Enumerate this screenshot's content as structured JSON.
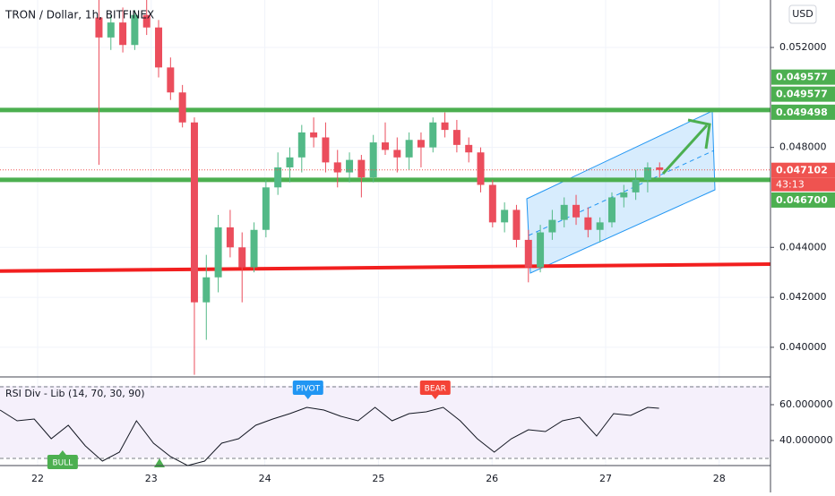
{
  "chart_data": [
    {
      "type": "candlestick",
      "title": "TRON / Dollar, 1h, BITFINEX",
      "currency": "USD",
      "up_color": "#53b987",
      "down_color": "#eb4d5c",
      "grid": true,
      "x": [
        22.54,
        22.645,
        22.75,
        22.855,
        22.96,
        23.065,
        23.17,
        23.275,
        23.38,
        23.485,
        23.59,
        23.695,
        23.8,
        23.905,
        24.01,
        24.115,
        24.22,
        24.325,
        24.43,
        24.535,
        24.64,
        24.745,
        24.85,
        24.955,
        25.06,
        25.165,
        25.27,
        25.375,
        25.48,
        25.585,
        25.69,
        25.795,
        25.9,
        26.005,
        26.11,
        26.215,
        26.32,
        26.425,
        26.53,
        26.635,
        26.74,
        26.845,
        26.95,
        27.055,
        27.16,
        27.265,
        27.37,
        27.475
      ],
      "open": [
        0.0532,
        0.0524,
        0.053,
        0.0521,
        0.0533,
        0.0528,
        0.0512,
        0.0502,
        0.049,
        0.0418,
        0.0428,
        0.0448,
        0.044,
        0.0432,
        0.0447,
        0.0464,
        0.0472,
        0.0476,
        0.0486,
        0.0484,
        0.0474,
        0.047,
        0.0475,
        0.0468,
        0.0482,
        0.0479,
        0.0476,
        0.0483,
        0.048,
        0.049,
        0.0487,
        0.0481,
        0.0478,
        0.0465,
        0.045,
        0.0455,
        0.0443,
        0.0432,
        0.0446,
        0.0451,
        0.0457,
        0.0452,
        0.0447,
        0.045,
        0.046,
        0.0462,
        0.0467,
        0.0472
      ],
      "high": [
        0.0539,
        0.0533,
        0.0536,
        0.0535,
        0.0539,
        0.0531,
        0.0516,
        0.0505,
        0.0492,
        0.0437,
        0.0453,
        0.0455,
        0.0446,
        0.045,
        0.0467,
        0.0478,
        0.048,
        0.0489,
        0.0492,
        0.049,
        0.0479,
        0.0478,
        0.0477,
        0.0485,
        0.049,
        0.0484,
        0.0486,
        0.0486,
        0.0492,
        0.0494,
        0.0491,
        0.0484,
        0.048,
        0.0467,
        0.0458,
        0.0457,
        0.0447,
        0.0449,
        0.0455,
        0.046,
        0.0461,
        0.0456,
        0.0452,
        0.0462,
        0.0465,
        0.0471,
        0.0474,
        0.0474
      ],
      "low": [
        0.0473,
        0.0519,
        0.0518,
        0.0519,
        0.0525,
        0.0508,
        0.0499,
        0.0488,
        0.0389,
        0.0403,
        0.0422,
        0.0436,
        0.0418,
        0.043,
        0.0444,
        0.0461,
        0.0466,
        0.047,
        0.048,
        0.047,
        0.0464,
        0.0466,
        0.046,
        0.0466,
        0.0477,
        0.047,
        0.0471,
        0.0472,
        0.0478,
        0.0484,
        0.0478,
        0.0474,
        0.0462,
        0.0448,
        0.0446,
        0.044,
        0.0426,
        0.043,
        0.0443,
        0.0448,
        0.0449,
        0.0444,
        0.0442,
        0.0448,
        0.0456,
        0.0459,
        0.0462,
        0.0468
      ],
      "close": [
        0.0524,
        0.053,
        0.0521,
        0.0533,
        0.0528,
        0.0512,
        0.0502,
        0.049,
        0.0418,
        0.0428,
        0.0448,
        0.044,
        0.0432,
        0.0447,
        0.0464,
        0.0472,
        0.0476,
        0.0486,
        0.0484,
        0.0474,
        0.047,
        0.0475,
        0.0468,
        0.0482,
        0.0479,
        0.0476,
        0.0483,
        0.048,
        0.049,
        0.0487,
        0.0481,
        0.0478,
        0.0465,
        0.045,
        0.0455,
        0.0443,
        0.0432,
        0.0446,
        0.0451,
        0.0457,
        0.0452,
        0.0447,
        0.045,
        0.046,
        0.0462,
        0.0467,
        0.0472,
        0.0471
      ],
      "xlim": [
        21.669,
        28.451
      ],
      "xticks": [
        22,
        23,
        24,
        25,
        26,
        27,
        28
      ],
      "ylim": [
        0.03885,
        0.0539
      ],
      "yticks": [
        {
          "value": 0.052,
          "label": "0.052000"
        },
        {
          "value": 0.048,
          "label": "0.048000"
        },
        {
          "value": 0.044,
          "label": "0.044000"
        },
        {
          "value": 0.042,
          "label": "0.042000"
        },
        {
          "value": 0.04,
          "label": "0.040000"
        }
      ],
      "levels": [
        {
          "value": 0.049498,
          "color": "#4caf50"
        },
        {
          "value": 0.0467,
          "color": "#4caf50"
        }
      ],
      "trendline": {
        "values": [
          0.04305,
          0.04333
        ],
        "color": "#f21f1f"
      },
      "price_labels": [
        {
          "value": 0.049577,
          "label": "0.049577",
          "color": "#4caf50"
        },
        {
          "value": 0.049577,
          "label": "0.049577",
          "color": "#4caf50"
        },
        {
          "value": 0.049498,
          "label": "0.049498",
          "color": "#4caf50"
        },
        {
          "value": 0.047102,
          "label": "0.047102",
          "color": "#ef5350"
        },
        {
          "value": 0.0467,
          "label": "0.046700",
          "color": "#4caf50"
        }
      ],
      "countdown": "43:13"
    },
    {
      "type": "line",
      "title": "RSI Div - Lib (14, 70, 30, 90)",
      "color": "#131722",
      "x": [
        21.67,
        21.82,
        21.97,
        22.12,
        22.27,
        22.42,
        22.57,
        22.72,
        22.87,
        23.02,
        23.17,
        23.32,
        23.47,
        23.62,
        23.77,
        23.92,
        24.07,
        24.22,
        24.37,
        24.52,
        24.67,
        24.82,
        24.97,
        25.12,
        25.27,
        25.42,
        25.57,
        25.72,
        25.87,
        26.02,
        26.17,
        26.32,
        26.47,
        26.62,
        26.77,
        26.92,
        27.07,
        27.22,
        27.37,
        27.47
      ],
      "values": [
        57,
        51,
        52,
        41,
        48.5,
        37,
        28.5,
        33.5,
        51,
        38.5,
        31,
        26,
        28.5,
        38.5,
        41,
        48.5,
        52,
        55,
        58.5,
        57,
        53.5,
        51,
        58.5,
        51,
        55,
        56,
        58.5,
        51,
        41,
        33.5,
        41,
        46,
        45,
        51,
        53,
        42.5,
        55,
        54,
        58.5,
        58
      ],
      "ylim": [
        26,
        75
      ],
      "yticks": [
        {
          "value": 60,
          "label": "60.000000"
        },
        {
          "value": 40,
          "label": "40.000000"
        }
      ],
      "bands": [
        70,
        30
      ],
      "signals": [
        {
          "label": "PIVOT",
          "x": 24.38,
          "color": "#2196f3",
          "position": "above"
        },
        {
          "label": "BEAR",
          "x": 25.5,
          "color": "#f44336",
          "position": "above"
        },
        {
          "label": "BULL",
          "x": 22.22,
          "color": "#4caf50",
          "position": "below"
        }
      ]
    }
  ]
}
